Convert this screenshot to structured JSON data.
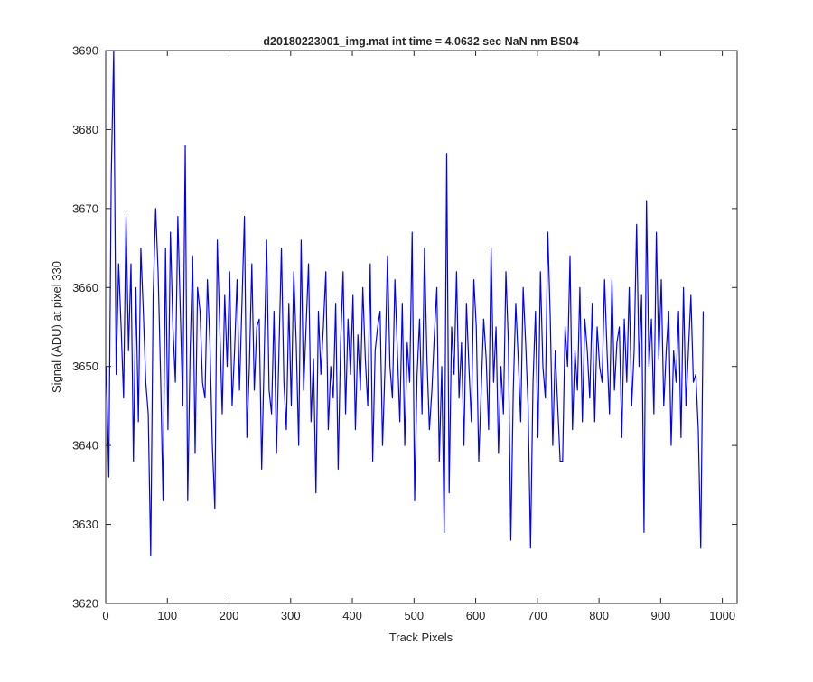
{
  "chart_data": {
    "type": "line",
    "title": "d20180223001_img.mat int time = 4.0632 sec  NaN nm BS04",
    "xlabel": "Track Pixels",
    "ylabel": "Signal (ADU) at pixel 330",
    "xlim": [
      0,
      1024
    ],
    "ylim": [
      3620,
      3690
    ],
    "xticks": [
      0,
      100,
      200,
      300,
      400,
      500,
      600,
      700,
      800,
      900,
      1000
    ],
    "yticks": [
      3620,
      3630,
      3640,
      3650,
      3660,
      3670,
      3680,
      3690
    ],
    "grid": false,
    "legend": "none",
    "series": [
      {
        "color": "#0000ff",
        "x_start": 1,
        "x_step": 4,
        "values": [
          3650,
          3636,
          3674,
          3690,
          3649,
          3663,
          3655,
          3646,
          3669,
          3652,
          3663,
          3638,
          3660,
          3643,
          3665,
          3657,
          3648,
          3644,
          3626,
          3659,
          3670,
          3662,
          3649,
          3633,
          3665,
          3642,
          3667,
          3655,
          3648,
          3669,
          3657,
          3645,
          3678,
          3633,
          3652,
          3664,
          3639,
          3660,
          3657,
          3648,
          3646,
          3661,
          3653,
          3640,
          3632,
          3666,
          3655,
          3644,
          3659,
          3650,
          3662,
          3645,
          3652,
          3661,
          3647,
          3658,
          3669,
          3641,
          3650,
          3663,
          3647,
          3655,
          3656,
          3637,
          3651,
          3666,
          3647,
          3644,
          3657,
          3639,
          3652,
          3665,
          3648,
          3642,
          3658,
          3645,
          3662,
          3653,
          3640,
          3666,
          3647,
          3655,
          3663,
          3643,
          3651,
          3634,
          3657,
          3649,
          3655,
          3662,
          3642,
          3650,
          3646,
          3658,
          3637,
          3653,
          3662,
          3644,
          3656,
          3649,
          3659,
          3642,
          3654,
          3647,
          3660,
          3651,
          3645,
          3663,
          3638,
          3652,
          3655,
          3657,
          3640,
          3650,
          3664,
          3650,
          3646,
          3661,
          3652,
          3643,
          3658,
          3640,
          3653,
          3648,
          3667,
          3633,
          3649,
          3656,
          3644,
          3665,
          3651,
          3642,
          3647,
          3654,
          3660,
          3638,
          3650,
          3629,
          3677,
          3634,
          3655,
          3649,
          3662,
          3646,
          3653,
          3640,
          3658,
          3650,
          3643,
          3661,
          3655,
          3638,
          3647,
          3656,
          3651,
          3642,
          3665,
          3648,
          3655,
          3639,
          3650,
          3644,
          3662,
          3653,
          3628,
          3647,
          3658,
          3651,
          3643,
          3660,
          3653,
          3645,
          3627,
          3648,
          3657,
          3641,
          3662,
          3650,
          3646,
          3667,
          3656,
          3640,
          3652,
          3645,
          3638,
          3638,
          3655,
          3650,
          3664,
          3642,
          3652,
          3647,
          3660,
          3643,
          3656,
          3652,
          3646,
          3658,
          3643,
          3655,
          3650,
          3648,
          3661,
          3652,
          3644,
          3661,
          3647,
          3653,
          3655,
          3641,
          3656,
          3648,
          3660,
          3645,
          3652,
          3668,
          3650,
          3659,
          3629,
          3671,
          3650,
          3656,
          3644,
          3667,
          3651,
          3661,
          3645,
          3652,
          3657,
          3640,
          3652,
          3648,
          3657,
          3641,
          3660,
          3645,
          3652,
          3659,
          3648,
          3649,
          3642,
          3627,
          3657
        ]
      }
    ]
  }
}
